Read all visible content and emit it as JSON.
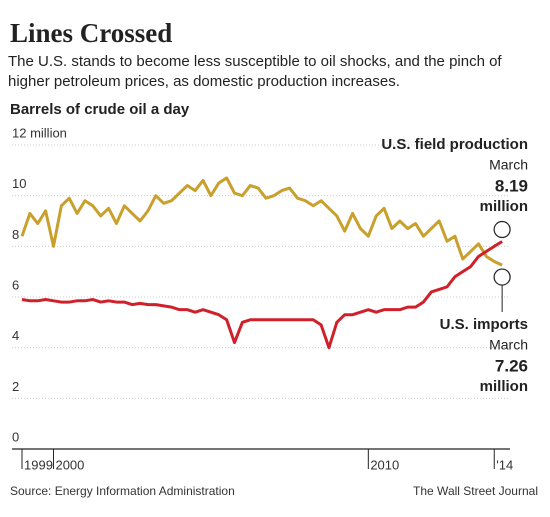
{
  "chart_data": {
    "type": "line",
    "title": "Lines Crossed",
    "subtitle": "The U.S. stands to become less susceptible to oil shocks, and the pinch of higher petroleum prices, as domestic production increases.",
    "y_axis_label": "Barrels of crude oil a day",
    "source": "Source: Energy Information Administration",
    "credit": "The Wall Street Journal",
    "end_month": "March",
    "end_unit": "million",
    "x": [
      1999,
      1999.25,
      1999.5,
      1999.75,
      2000,
      2000.25,
      2000.5,
      2000.75,
      2001,
      2001.25,
      2001.5,
      2001.75,
      2002,
      2002.25,
      2002.5,
      2002.75,
      2003,
      2003.25,
      2003.5,
      2003.75,
      2004,
      2004.25,
      2004.5,
      2004.75,
      2005,
      2005.25,
      2005.5,
      2005.75,
      2006,
      2006.25,
      2006.5,
      2006.75,
      2007,
      2007.25,
      2007.5,
      2007.75,
      2008,
      2008.25,
      2008.5,
      2008.75,
      2009,
      2009.25,
      2009.5,
      2009.75,
      2010,
      2010.25,
      2010.5,
      2010.75,
      2011,
      2011.25,
      2011.5,
      2011.75,
      2012,
      2012.25,
      2012.5,
      2012.75,
      2013,
      2013.25,
      2013.5,
      2013.75,
      2014,
      2014.25
    ],
    "series": [
      {
        "name": "U.S. imports",
        "color": "#c9a02c",
        "values": [
          8.4,
          9.3,
          8.9,
          9.4,
          8.0,
          9.6,
          9.9,
          9.3,
          9.8,
          9.6,
          9.2,
          9.5,
          8.9,
          9.6,
          9.3,
          9.0,
          9.4,
          10.0,
          9.7,
          9.8,
          10.1,
          10.4,
          10.2,
          10.6,
          10.0,
          10.5,
          10.7,
          10.1,
          10.0,
          10.4,
          10.3,
          9.9,
          10.0,
          10.2,
          10.3,
          9.9,
          9.8,
          9.6,
          9.8,
          9.5,
          9.2,
          8.6,
          9.3,
          8.7,
          8.4,
          9.2,
          9.5,
          8.7,
          9.0,
          8.7,
          8.9,
          8.4,
          8.7,
          9.0,
          8.2,
          8.4,
          7.5,
          7.8,
          8.1,
          7.6,
          7.4,
          7.26
        ]
      },
      {
        "name": "U.S. field production",
        "color": "#d0202a",
        "values": [
          5.9,
          5.85,
          5.85,
          5.9,
          5.85,
          5.8,
          5.8,
          5.85,
          5.85,
          5.9,
          5.8,
          5.85,
          5.8,
          5.8,
          5.7,
          5.75,
          5.7,
          5.7,
          5.65,
          5.6,
          5.5,
          5.5,
          5.4,
          5.5,
          5.4,
          5.3,
          5.1,
          4.2,
          5.0,
          5.1,
          5.1,
          5.1,
          5.1,
          5.1,
          5.1,
          5.1,
          5.1,
          5.1,
          4.9,
          4.0,
          5.0,
          5.3,
          5.3,
          5.4,
          5.5,
          5.4,
          5.5,
          5.5,
          5.5,
          5.6,
          5.6,
          5.8,
          6.2,
          6.3,
          6.4,
          6.8,
          7.0,
          7.2,
          7.6,
          7.8,
          8.0,
          8.19
        ]
      }
    ],
    "xlim": [
      1999,
      2014.5
    ],
    "xticks": [
      1999,
      2000,
      2010,
      {
        "value": 2014,
        "label": "'14"
      }
    ],
    "ylim": [
      0,
      12
    ],
    "yticks": [
      0,
      2,
      4,
      6,
      8,
      10,
      {
        "value": 12,
        "label": "12 million"
      }
    ],
    "grid": true
  }
}
